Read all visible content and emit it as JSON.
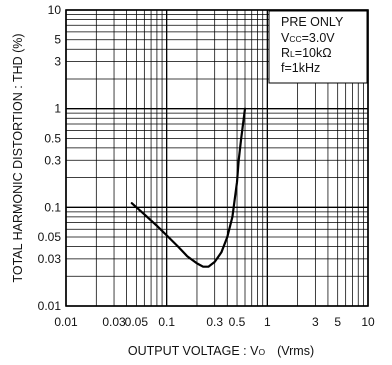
{
  "chart_data": {
    "type": "line",
    "x_scale": "log",
    "y_scale": "log",
    "xlim": [
      0.01,
      10
    ],
    "ylim": [
      0.01,
      10
    ],
    "grid": true,
    "x_ticks": [
      {
        "value": 0.01,
        "label": "0.01"
      },
      {
        "value": 0.03,
        "label": "0.03"
      },
      {
        "value": 0.05,
        "label": "0.05"
      },
      {
        "value": 0.1,
        "label": "0.1"
      },
      {
        "value": 0.3,
        "label": "0.3"
      },
      {
        "value": 0.5,
        "label": "0.5"
      },
      {
        "value": 1,
        "label": "1"
      },
      {
        "value": 3,
        "label": "3"
      },
      {
        "value": 5,
        "label": "5"
      },
      {
        "value": 10,
        "label": "10"
      }
    ],
    "y_ticks": [
      {
        "value": 10,
        "label": "10"
      },
      {
        "value": 5,
        "label": "5"
      },
      {
        "value": 3,
        "label": "3"
      },
      {
        "value": 1,
        "label": "1"
      },
      {
        "value": 0.5,
        "label": "0.5"
      },
      {
        "value": 0.3,
        "label": "0.3"
      },
      {
        "value": 0.1,
        "label": "0.1"
      },
      {
        "value": 0.05,
        "label": "0.05"
      },
      {
        "value": 0.03,
        "label": "0.03"
      },
      {
        "value": 0.01,
        "label": "0.01"
      }
    ],
    "xlabel": {
      "main": "OUTPUT VOLTAGE : V",
      "sub": "O",
      "unit": "(Vrms)"
    },
    "ylabel": "TOTAL HARMONIC DISTORTION : THD (%)",
    "legend": {
      "placement": "top-right",
      "title": "PRE ONLY",
      "lines": [
        {
          "main": "V",
          "sub": "CC",
          "rest": "=3.0V"
        },
        {
          "main": "R",
          "sub": "L",
          "rest": "=10kΩ"
        },
        {
          "main": "f=1kHz",
          "sub": "",
          "rest": ""
        }
      ]
    },
    "series": [
      {
        "x": [
          0.045,
          0.06,
          0.08,
          0.1,
          0.13,
          0.16,
          0.2,
          0.23,
          0.26,
          0.3,
          0.35,
          0.4,
          0.45,
          0.5,
          0.52,
          0.55,
          0.6
        ],
        "y": [
          0.11,
          0.085,
          0.065,
          0.052,
          0.04,
          0.032,
          0.027,
          0.025,
          0.025,
          0.028,
          0.035,
          0.05,
          0.08,
          0.18,
          0.3,
          0.5,
          1.0
        ]
      }
    ]
  }
}
